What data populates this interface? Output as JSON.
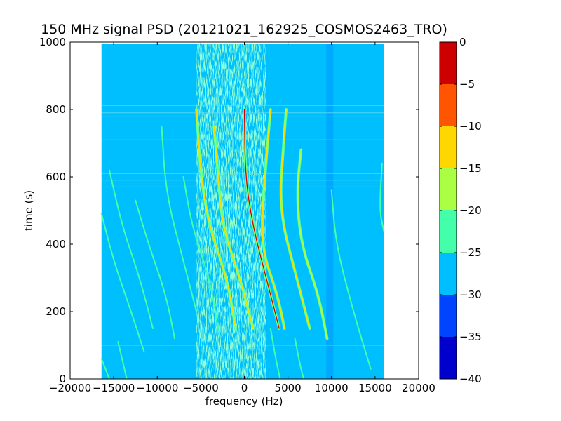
{
  "chart_data": {
    "type": "heatmap",
    "title": "150 MHz signal PSD (20121021_162925_COSMOS2463_TRO)",
    "xlabel": "frequency (Hz)",
    "ylabel": "time (s)",
    "xlim": [
      -20000,
      20000
    ],
    "ylim": [
      0,
      1000
    ],
    "xticks": [
      -20000,
      -15000,
      -10000,
      -5000,
      0,
      5000,
      10000,
      15000,
      20000
    ],
    "xtick_labels": [
      "−20000",
      "−15000",
      "−10000",
      "−5000",
      "0",
      "5000",
      "10000",
      "15000",
      "20000"
    ],
    "yticks": [
      0,
      200,
      400,
      600,
      800,
      1000
    ],
    "ytick_labels": [
      "0",
      "200",
      "400",
      "600",
      "800",
      "1000"
    ],
    "data_extent": {
      "freq": [
        -16400,
        16000
      ],
      "time": [
        0,
        995
      ]
    },
    "background_level": -27.5,
    "colorbar": {
      "levels": [
        -40,
        -35,
        -30,
        -25,
        -20,
        -15,
        -10,
        -5,
        0
      ],
      "tick_labels": [
        "−40",
        "−35",
        "−30",
        "−25",
        "−20",
        "−15",
        "−10",
        "−5",
        "0"
      ],
      "colors": [
        "#0000cc",
        "#0044ff",
        "#00bfff",
        "#44ffaa",
        "#aaff44",
        "#ffd700",
        "#ff5500",
        "#cc0000"
      ]
    },
    "colors": {
      "background": "#00bfff",
      "noise": "#44ffaa",
      "trace": "#aaff44",
      "strong": "#ffd700",
      "peak": "#cc0000",
      "faint": "#0044ff"
    },
    "noise_band": {
      "center_freq": -1500,
      "width_hz": 8000
    },
    "horizontal_artifacts_time": [
      100,
      570,
      590,
      610,
      710,
      780,
      790,
      812
    ],
    "traces": [
      {
        "points": [
          [
            3000,
            800
          ],
          [
            2500,
            650
          ],
          [
            1800,
            400
          ],
          [
            3800,
            250
          ],
          [
            4600,
            150
          ]
        ],
        "level": -10
      },
      {
        "points": [
          [
            4800,
            800
          ],
          [
            4500,
            700
          ],
          [
            4000,
            500
          ],
          [
            6000,
            300
          ],
          [
            7500,
            150
          ]
        ],
        "level": -10
      },
      {
        "points": [
          [
            -5500,
            800
          ],
          [
            -5000,
            600
          ],
          [
            -4000,
            450
          ],
          [
            -2000,
            300
          ],
          [
            -1000,
            150
          ]
        ],
        "level": -10
      },
      {
        "points": [
          [
            -3500,
            750
          ],
          [
            -3000,
            600
          ],
          [
            -2500,
            450
          ],
          [
            -500,
            300
          ],
          [
            1000,
            150
          ]
        ],
        "level": -10
      },
      {
        "points": [
          [
            0,
            800
          ],
          [
            100,
            600
          ],
          [
            1000,
            450
          ],
          [
            2500,
            300
          ],
          [
            4000,
            150
          ]
        ],
        "level": 0
      },
      {
        "points": [
          [
            6500,
            680
          ],
          [
            6000,
            550
          ],
          [
            6500,
            400
          ],
          [
            8500,
            250
          ],
          [
            9500,
            120
          ]
        ],
        "level": -15
      },
      {
        "points": [
          [
            -16400,
            490
          ],
          [
            -15000,
            350
          ],
          [
            -13000,
            200
          ],
          [
            -11500,
            80
          ]
        ],
        "level": -20
      },
      {
        "points": [
          [
            -15500,
            620
          ],
          [
            -14000,
            450
          ],
          [
            -12000,
            300
          ],
          [
            -10500,
            150
          ]
        ],
        "level": -20
      },
      {
        "points": [
          [
            -16400,
            60
          ],
          [
            -15500,
            0
          ]
        ],
        "level": -20
      },
      {
        "points": [
          [
            -9500,
            750
          ],
          [
            -9000,
            550
          ],
          [
            -7000,
            350
          ],
          [
            -5500,
            200
          ]
        ],
        "level": -20
      },
      {
        "points": [
          [
            -7000,
            600
          ],
          [
            -6000,
            450
          ],
          [
            -4000,
            300
          ],
          [
            -3000,
            150
          ]
        ],
        "level": -20
      },
      {
        "points": [
          [
            -12500,
            530
          ],
          [
            -11000,
            400
          ],
          [
            -9000,
            250
          ],
          [
            -8000,
            120
          ]
        ],
        "level": -20
      },
      {
        "points": [
          [
            10000,
            560
          ],
          [
            10500,
            400
          ],
          [
            12500,
            200
          ],
          [
            14500,
            30
          ]
        ],
        "level": -20
      },
      {
        "points": [
          [
            15800,
            640
          ],
          [
            15500,
            500
          ],
          [
            16000,
            440
          ]
        ],
        "level": -20
      },
      {
        "points": [
          [
            3000,
            150
          ],
          [
            3600,
            60
          ],
          [
            4100,
            0
          ]
        ],
        "level": -20
      },
      {
        "points": [
          [
            5800,
            120
          ],
          [
            6400,
            40
          ],
          [
            6800,
            0
          ]
        ],
        "level": -20
      },
      {
        "points": [
          [
            -14500,
            110
          ],
          [
            -13500,
            0
          ]
        ],
        "level": -20
      }
    ]
  }
}
